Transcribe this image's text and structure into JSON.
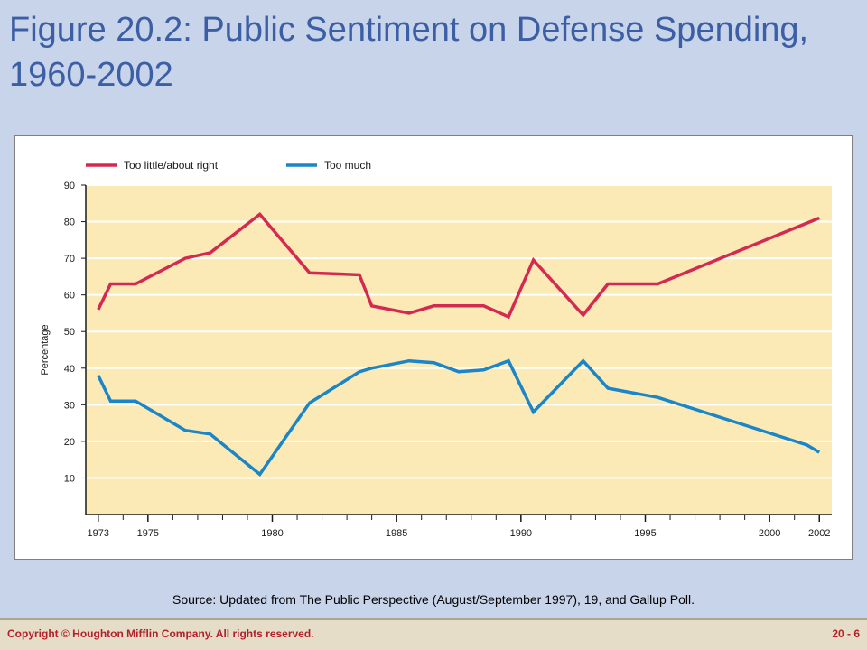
{
  "slide": {
    "title": "Figure 20.2: Public Sentiment on Defense Spending, 1960-2002",
    "source": "Source: Updated from The Public Perspective (August/September 1997), 19, and Gallup Poll.",
    "copyright": "Copyright © Houghton Mifflin Company. All rights reserved.",
    "page": "20 - 6"
  },
  "colors": {
    "background": "#c8d4ea",
    "title": "#3b5ea5",
    "plot_bg": "#fbeab5",
    "series_red": "#d42a52",
    "series_blue": "#1a85c8",
    "footer_text": "#b3202a"
  },
  "chart_data": {
    "type": "line",
    "title": "",
    "xlabel": "",
    "ylabel": "Percentage",
    "xlim": [
      1972.5,
      2002.5
    ],
    "ylim": [
      0,
      90
    ],
    "yticks": [
      10,
      20,
      30,
      40,
      50,
      60,
      70,
      80,
      90
    ],
    "xticks": [
      1973,
      1975,
      1980,
      1985,
      1990,
      1995,
      2000,
      2002
    ],
    "grid": true,
    "legend": "top-left",
    "series": [
      {
        "name": "Too little/about right",
        "color": "#d42a52",
        "x": [
          1973,
          1973.5,
          1974.5,
          1976.5,
          1977.5,
          1979.5,
          1981.5,
          1983.5,
          1984,
          1985.5,
          1986.5,
          1988.5,
          1989.5,
          1990.5,
          1992.5,
          1993.5,
          1995.5,
          2002
        ],
        "y": [
          56,
          63,
          63,
          70,
          71.5,
          82,
          66,
          65.5,
          57,
          55,
          57,
          57,
          54,
          69.5,
          54.5,
          63,
          63,
          81
        ]
      },
      {
        "name": "Too much",
        "color": "#1a85c8",
        "x": [
          1973,
          1973.5,
          1974.5,
          1976.5,
          1977.5,
          1979.5,
          1981.5,
          1983.5,
          1984,
          1985.5,
          1986.5,
          1987.5,
          1988.5,
          1989.5,
          1990.5,
          1992.5,
          1993.5,
          1995.5,
          2001.5,
          2002
        ],
        "y": [
          38,
          31,
          31,
          23,
          22,
          11,
          30.5,
          39,
          40,
          42,
          41.5,
          39,
          39.5,
          42,
          28,
          42,
          34.5,
          32,
          19,
          17
        ]
      }
    ]
  }
}
